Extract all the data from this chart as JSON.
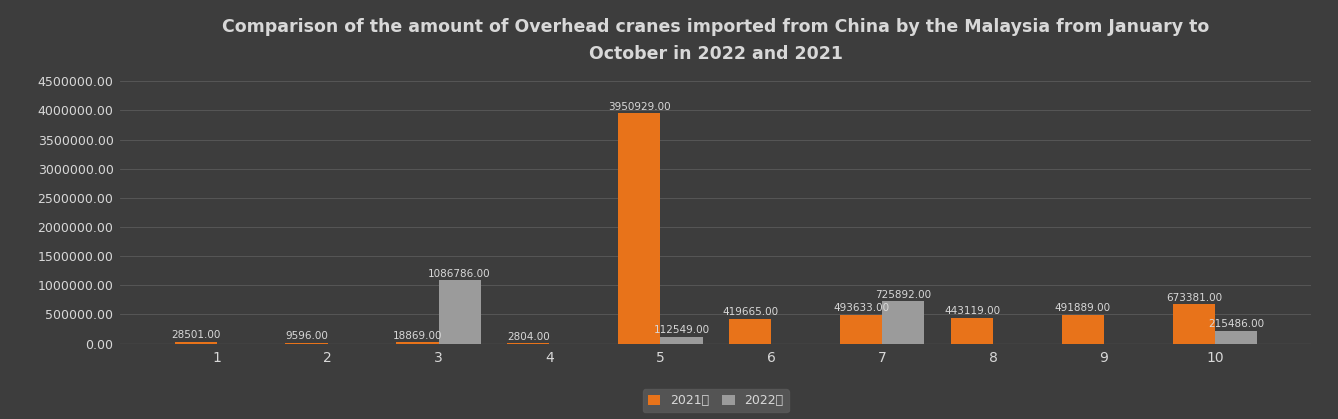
{
  "title": "Comparison of the amount of Overhead cranes imported from China by the Malaysia from January to\nOctober in 2022 and 2021",
  "months": [
    "1",
    "2",
    "3",
    "4",
    "5",
    "6",
    "7",
    "8",
    "9",
    "10"
  ],
  "values_2021": [
    28501,
    9596,
    18869,
    2804,
    3950929,
    419665,
    493633,
    443119,
    491889,
    673381
  ],
  "values_2022": [
    0,
    0,
    1086786,
    0,
    112549,
    0,
    725892,
    0,
    0,
    215486
  ],
  "color_2021": "#E8731A",
  "color_2022": "#9B9B9B",
  "background_color": "#3d3d3d",
  "plot_bg_color": "#3d3d3d",
  "text_color": "#d8d8d8",
  "grid_color": "#5a5a5a",
  "legend_2021": "2021年",
  "legend_2022": "2022年",
  "ylim": [
    0,
    4600000
  ],
  "yticks": [
    0,
    500000,
    1000000,
    1500000,
    2000000,
    2500000,
    3000000,
    3500000,
    4000000,
    4500000
  ],
  "bar_width": 0.38,
  "label_fontsize": 7.5,
  "title_fontsize": 12.5,
  "legend_bg": "#5a5a5a"
}
